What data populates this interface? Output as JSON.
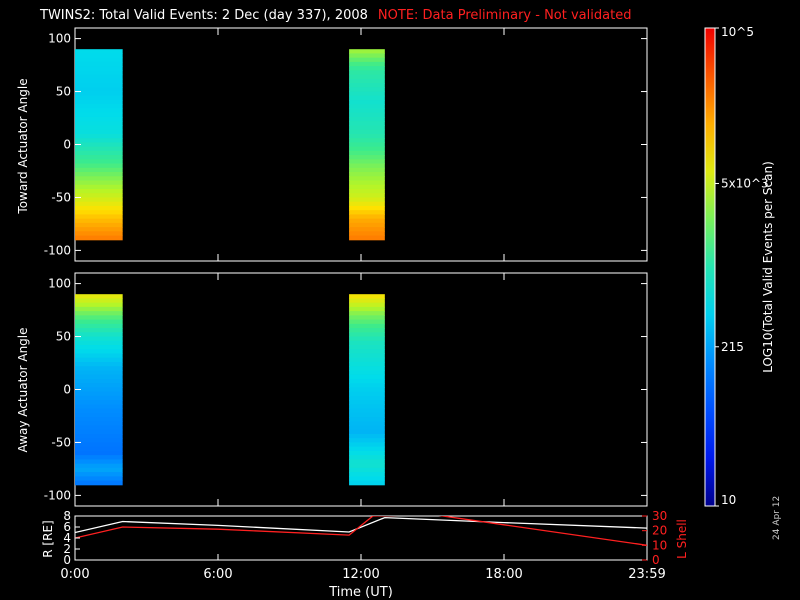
{
  "title": {
    "main": "TWINS2: Total Valid Events:  2 Dec (day 337), 2008",
    "note": "NOTE: Data Preliminary - Not validated"
  },
  "stamp": "24 Apr 12",
  "colorbar": {
    "label": "LOG10(Total Valid Events per Scan)",
    "ticks": [
      {
        "value": 10,
        "label": "10"
      },
      {
        "value": 215,
        "label": "215"
      },
      {
        "value": 5000,
        "label": "5x10^3"
      },
      {
        "value": 100000,
        "label": "10^5"
      }
    ],
    "min": 10,
    "max": 100000,
    "scale": "log"
  },
  "chart_data": [
    {
      "type": "heatmap",
      "ylabel": "Toward Actuator Angle",
      "ylim": [
        -110,
        110
      ],
      "yticks": [
        "100",
        "50",
        "0",
        "-50",
        "-100"
      ],
      "xlim_hours": [
        0,
        24
      ],
      "xticks": [
        "0:00",
        "6:00",
        "12:00",
        "18:00",
        "23:59"
      ],
      "blocks": [
        {
          "t_start_hours": 0.0,
          "t_end_hours": 2.0,
          "angle_range": [
            -90,
            90
          ],
          "profile": [
            {
              "angle": 90,
              "level": 0.42
            },
            {
              "angle": 50,
              "level": 0.4
            },
            {
              "angle": 10,
              "level": 0.44
            },
            {
              "angle": -10,
              "level": 0.52
            },
            {
              "angle": -30,
              "level": 0.6
            },
            {
              "angle": -50,
              "level": 0.68
            },
            {
              "angle": -70,
              "level": 0.78
            },
            {
              "angle": -90,
              "level": 0.86
            }
          ]
        },
        {
          "t_start_hours": 11.5,
          "t_end_hours": 13.0,
          "angle_range": [
            -90,
            90
          ],
          "profile": [
            {
              "angle": 90,
              "level": 0.64
            },
            {
              "angle": 70,
              "level": 0.52
            },
            {
              "angle": 40,
              "level": 0.46
            },
            {
              "angle": 10,
              "level": 0.5
            },
            {
              "angle": -20,
              "level": 0.6
            },
            {
              "angle": -50,
              "level": 0.68
            },
            {
              "angle": -70,
              "level": 0.8
            },
            {
              "angle": -90,
              "level": 0.86
            }
          ]
        }
      ]
    },
    {
      "type": "heatmap",
      "ylabel": "Away Actuator Angle",
      "ylim": [
        -110,
        110
      ],
      "yticks": [
        "100",
        "50",
        "0",
        "-50",
        "-100"
      ],
      "xlim_hours": [
        0,
        24
      ],
      "xticks": [
        "0:00",
        "6:00",
        "12:00",
        "18:00",
        "23:59"
      ],
      "blocks": [
        {
          "t_start_hours": 0.0,
          "t_end_hours": 2.0,
          "angle_range": [
            -90,
            90
          ],
          "profile": [
            {
              "angle": 90,
              "level": 0.72
            },
            {
              "angle": 70,
              "level": 0.58
            },
            {
              "angle": 50,
              "level": 0.46
            },
            {
              "angle": 20,
              "level": 0.36
            },
            {
              "angle": -20,
              "level": 0.3
            },
            {
              "angle": -60,
              "level": 0.26
            },
            {
              "angle": -75,
              "level": 0.34
            },
            {
              "angle": -90,
              "level": 0.26
            }
          ]
        },
        {
          "t_start_hours": 11.5,
          "t_end_hours": 13.0,
          "angle_range": [
            -90,
            90
          ],
          "profile": [
            {
              "angle": 90,
              "level": 0.74
            },
            {
              "angle": 70,
              "level": 0.6
            },
            {
              "angle": 45,
              "level": 0.48
            },
            {
              "angle": 0,
              "level": 0.4
            },
            {
              "angle": -40,
              "level": 0.36
            },
            {
              "angle": -70,
              "level": 0.46
            },
            {
              "angle": -90,
              "level": 0.4
            }
          ]
        }
      ]
    },
    {
      "type": "line",
      "ylabel": "R [RE]",
      "ylabel_right": "L Shell",
      "ylim": [
        0,
        8
      ],
      "yticks": [
        "8",
        "6",
        "4",
        "2",
        "0"
      ],
      "ylim_right": [
        0,
        30
      ],
      "yticks_right": [
        "30",
        "20",
        "10",
        "0"
      ],
      "xlabel": "Time (UT)",
      "xticks": [
        "0:00",
        "6:00",
        "12:00",
        "18:00",
        "23:59"
      ],
      "series": [
        {
          "axis": "left",
          "color": "#ffffff",
          "x": [
            0,
            2.0,
            6.0,
            11.5,
            13.0,
            18.0,
            24.0
          ],
          "y": [
            5.0,
            7.0,
            6.3,
            5.1,
            7.7,
            6.8,
            5.8
          ]
        },
        {
          "axis": "right",
          "color": "#ff2020",
          "x": [
            0,
            2.0,
            6.0,
            11.5,
            12.5,
            15.0,
            18.0,
            24.0
          ],
          "y": [
            15,
            22.5,
            21,
            17,
            30,
            31,
            24,
            10
          ]
        }
      ]
    }
  ]
}
